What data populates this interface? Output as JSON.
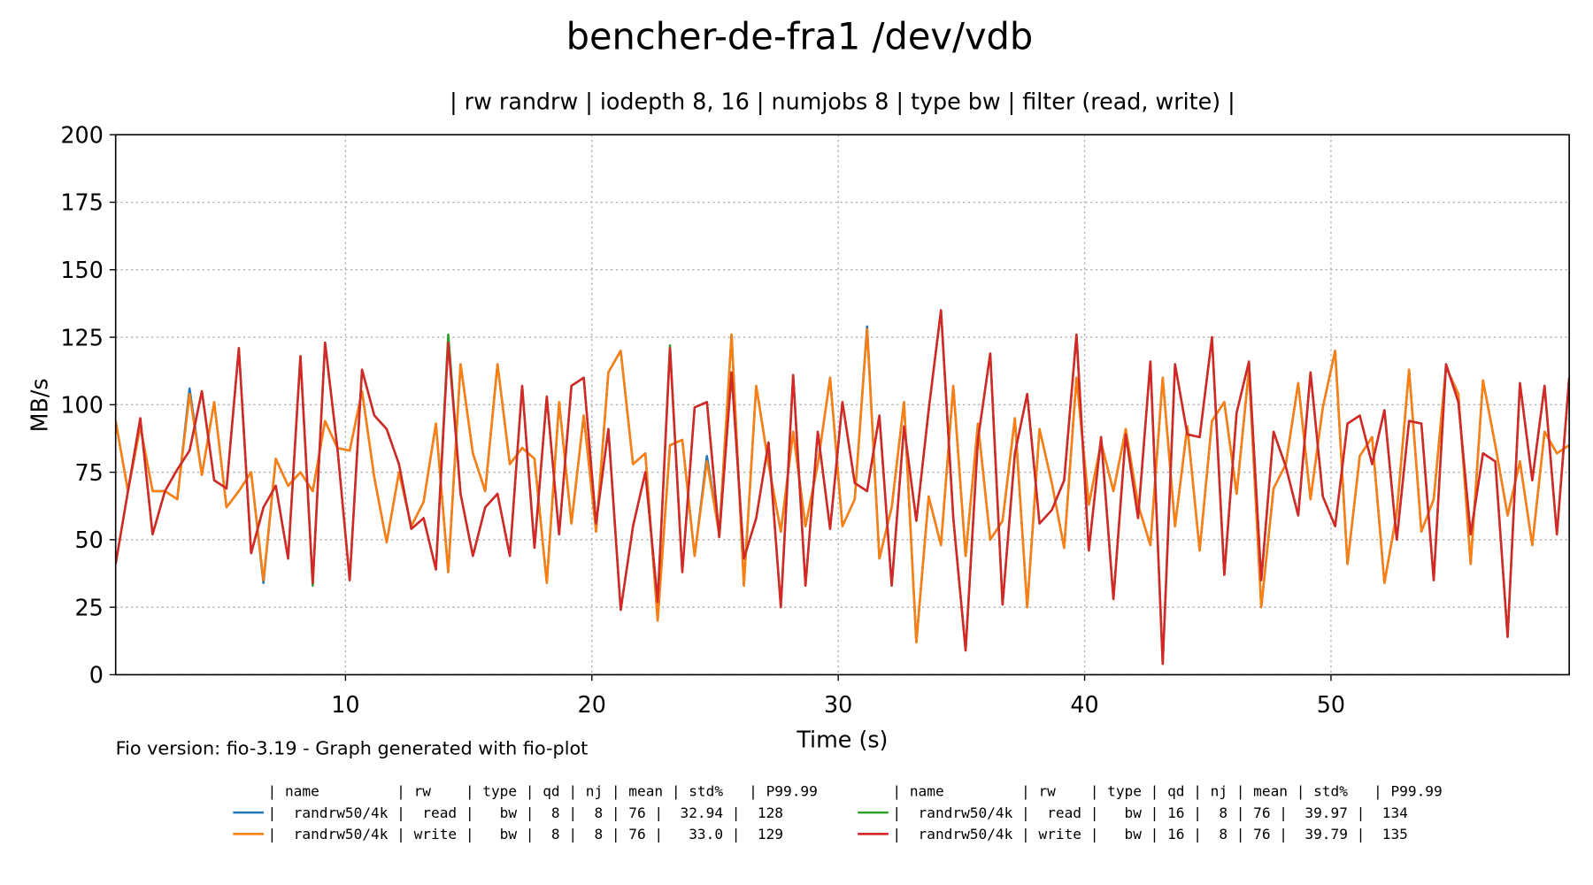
{
  "chart_data": {
    "type": "line",
    "title": "bencher-de-fra1 /dev/vdb",
    "subtitle": "| rw randrw | iodepth 8, 16 | numjobs 8 | type bw | filter (read, write) |",
    "xlabel": "Time (s)",
    "ylabel": "MB/s",
    "footnote": "Fio version: fio-3.19 - Graph generated with fio-plot",
    "legend_header": [
      "| name         | rw    | type | qd | nj | mean | std%   | P99.99",
      "| name         | rw    | type | qd | nj | mean | std%   | P99.99"
    ],
    "grid": true,
    "xlim": [
      0.67,
      59.67
    ],
    "xticks": [
      10,
      20,
      30,
      40,
      50
    ],
    "ylim": [
      0,
      200
    ],
    "yticks": [
      0,
      25,
      50,
      75,
      100,
      125,
      150,
      175,
      200
    ],
    "x": [
      0.67,
      1.17,
      1.67,
      2.17,
      2.67,
      3.17,
      3.67,
      4.17,
      4.67,
      5.17,
      5.67,
      6.17,
      6.67,
      7.17,
      7.67,
      8.17,
      8.67,
      9.17,
      9.67,
      10.17,
      10.67,
      11.17,
      11.67,
      12.17,
      12.67,
      13.17,
      13.67,
      14.17,
      14.67,
      15.17,
      15.67,
      16.17,
      16.67,
      17.17,
      17.67,
      18.17,
      18.67,
      19.17,
      19.67,
      20.17,
      20.67,
      21.17,
      21.67,
      22.17,
      22.67,
      23.17,
      23.67,
      24.17,
      24.67,
      25.17,
      25.67,
      26.17,
      26.67,
      27.17,
      27.67,
      28.17,
      28.67,
      29.17,
      29.67,
      30.17,
      30.67,
      31.17,
      31.67,
      32.17,
      32.67,
      33.17,
      33.67,
      34.17,
      34.67,
      35.17,
      35.67,
      36.17,
      36.67,
      37.17,
      37.67,
      38.17,
      38.67,
      39.17,
      39.67,
      40.17,
      40.67,
      41.17,
      41.67,
      42.17,
      42.67,
      43.17,
      43.67,
      44.17,
      44.67,
      45.17,
      45.67,
      46.17,
      46.67,
      47.17,
      47.67,
      48.17,
      48.67,
      49.17,
      49.67,
      50.17,
      50.67,
      51.17,
      51.67,
      52.17,
      52.67,
      53.17,
      53.67,
      54.17,
      54.67,
      55.17,
      55.67,
      56.17,
      56.67,
      57.17,
      57.67,
      58.17,
      58.67,
      59.17,
      59.67
    ],
    "series": [
      {
        "name": "|  randrw50/4k |  read |   bw |  8 |  8 | 76 |  32.94 |  128",
        "color": "#1f77b4",
        "values": [
          94,
          68,
          92,
          68,
          68,
          65,
          106,
          74,
          101,
          62,
          68,
          75,
          34,
          80,
          70,
          75,
          68,
          94,
          84,
          83,
          105,
          73,
          49,
          75,
          55,
          64,
          93,
          38,
          115,
          82,
          68,
          115,
          78,
          84,
          80,
          34,
          101,
          56,
          96,
          53,
          112,
          120,
          78,
          82,
          20,
          85,
          87,
          44,
          81,
          52,
          126,
          33,
          107,
          78,
          53,
          90,
          55,
          78,
          110,
          55,
          65,
          129,
          43,
          62,
          101,
          12,
          66,
          48,
          107,
          44,
          93,
          50,
          57,
          95,
          25,
          91,
          71,
          47,
          110,
          63,
          86,
          68,
          91,
          63,
          48,
          110,
          55,
          92,
          46,
          94,
          101,
          67,
          113,
          25,
          69,
          78,
          108,
          65,
          99,
          120,
          41,
          81,
          88,
          34,
          60,
          113,
          53,
          65,
          114,
          104,
          41,
          109,
          85,
          59,
          79,
          48,
          90,
          82,
          85
        ]
      },
      {
        "name": "|  randrw50/4k | write |   bw |  8 |  8 | 76 |   33.0 |  129",
        "color": "#ff7f0e",
        "values": [
          94,
          68,
          92,
          68,
          68,
          65,
          104,
          74,
          101,
          62,
          68,
          75,
          35,
          80,
          70,
          75,
          68,
          94,
          84,
          83,
          105,
          73,
          49,
          75,
          55,
          64,
          93,
          38,
          115,
          82,
          68,
          115,
          78,
          84,
          80,
          34,
          101,
          56,
          96,
          53,
          112,
          120,
          78,
          82,
          20,
          85,
          87,
          44,
          79,
          52,
          126,
          33,
          107,
          78,
          53,
          90,
          55,
          78,
          110,
          55,
          65,
          128,
          43,
          62,
          101,
          12,
          66,
          48,
          107,
          44,
          93,
          50,
          57,
          95,
          25,
          91,
          71,
          47,
          110,
          63,
          86,
          68,
          91,
          63,
          48,
          110,
          55,
          92,
          46,
          94,
          101,
          67,
          113,
          25,
          69,
          78,
          108,
          65,
          99,
          120,
          41,
          81,
          88,
          34,
          60,
          113,
          53,
          65,
          114,
          104,
          41,
          109,
          85,
          59,
          79,
          48,
          90,
          82,
          85
        ]
      },
      {
        "name": "|  randrw50/4k |  read |   bw | 16 |  8 | 76 |  39.97 |  134",
        "color": "#2ca02c",
        "values": [
          41,
          68,
          95,
          52,
          68,
          76,
          83,
          105,
          72,
          69,
          121,
          45,
          62,
          70,
          43,
          118,
          33,
          123,
          84,
          35,
          113,
          96,
          91,
          78,
          54,
          58,
          39,
          126,
          67,
          44,
          62,
          67,
          44,
          107,
          47,
          103,
          52,
          107,
          110,
          56,
          91,
          24,
          55,
          75,
          27,
          122,
          38,
          99,
          101,
          51,
          112,
          43,
          58,
          86,
          25,
          111,
          33,
          90,
          54,
          101,
          71,
          68,
          96,
          33,
          92,
          57,
          98,
          135,
          58,
          9,
          87,
          119,
          26,
          82,
          104,
          56,
          61,
          72,
          126,
          46,
          88,
          28,
          89,
          58,
          116,
          4,
          115,
          89,
          88,
          125,
          37,
          97,
          116,
          35,
          90,
          77,
          59,
          112,
          66,
          55,
          93,
          96,
          78,
          98,
          50,
          94,
          93,
          35,
          115,
          101,
          52,
          82,
          79,
          14,
          108,
          72,
          107,
          52,
          110
        ]
      },
      {
        "name": "|  randrw50/4k | write |   bw | 16 |  8 | 76 |  39.79 |  135",
        "color": "#d62728",
        "values": [
          41,
          68,
          95,
          52,
          68,
          76,
          83,
          105,
          72,
          69,
          121,
          45,
          62,
          70,
          43,
          118,
          34,
          123,
          84,
          35,
          113,
          96,
          91,
          78,
          54,
          58,
          39,
          123,
          67,
          44,
          62,
          67,
          44,
          107,
          47,
          103,
          52,
          107,
          110,
          56,
          91,
          24,
          55,
          75,
          27,
          121,
          38,
          99,
          101,
          51,
          112,
          43,
          58,
          86,
          25,
          111,
          33,
          90,
          54,
          101,
          71,
          68,
          96,
          33,
          92,
          57,
          98,
          135,
          58,
          9,
          87,
          119,
          26,
          82,
          104,
          56,
          61,
          72,
          126,
          46,
          88,
          28,
          89,
          58,
          116,
          4,
          115,
          89,
          88,
          125,
          37,
          97,
          116,
          35,
          90,
          77,
          59,
          112,
          66,
          55,
          93,
          96,
          78,
          98,
          50,
          94,
          93,
          35,
          115,
          101,
          52,
          82,
          79,
          14,
          108,
          72,
          107,
          52,
          110
        ]
      }
    ]
  }
}
